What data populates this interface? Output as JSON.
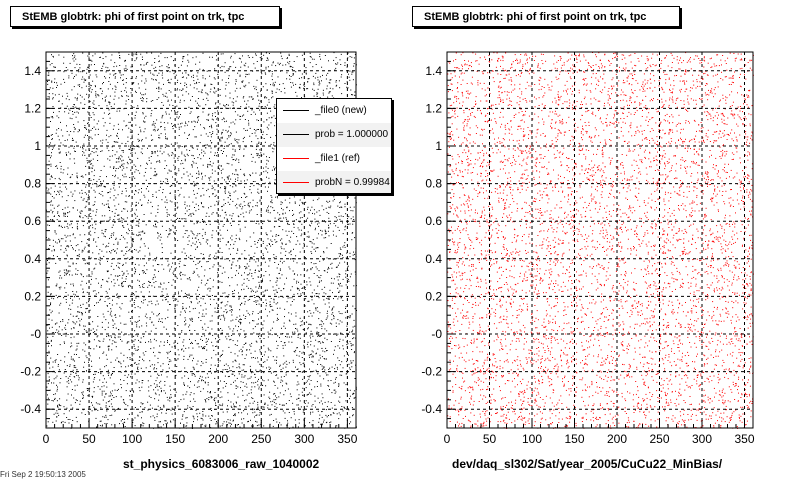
{
  "chart_data": [
    {
      "type": "scatter",
      "title": "StEMB globtrk: phi of first point on trk, tpc",
      "xlabel": "st_physics_6083006_raw_1040002",
      "ylabel": "",
      "xlim": [
        0,
        360
      ],
      "ylim": [
        -0.5,
        1.5
      ],
      "xticks": [
        0,
        50,
        100,
        150,
        200,
        250,
        300,
        350
      ],
      "yticks": [
        -0.4,
        -0.2,
        0,
        0.2,
        0.4,
        0.6,
        0.8,
        1,
        1.2,
        1.4
      ],
      "ytick_labels": [
        "-0.4",
        "-0.2",
        "-0",
        "0.2",
        "0.4",
        "0.6",
        "0.8",
        "1",
        "1.2",
        "1.4"
      ],
      "grid": true,
      "point_color": "#000000",
      "point_count_estimate": 6000,
      "distribution": "approximately uniform over x 0-360 and y -0.5-1.5",
      "legend": {
        "placement": "top-right",
        "entries": [
          {
            "label": "_file0 (new)",
            "color": "#000000"
          },
          {
            "label": "prob = 1.000000",
            "color": "#000000"
          },
          {
            "label": "_file1 (ref)",
            "color": "#ff0000"
          },
          {
            "label": "probN = 0.99984",
            "color": "#ff0000"
          }
        ]
      }
    },
    {
      "type": "scatter",
      "title": "StEMB globtrk: phi of first point on trk, tpc",
      "xlabel": "dev/daq_sl302/Sat/year_2005/CuCu22_MinBias/",
      "ylabel": "",
      "xlim": [
        0,
        360
      ],
      "ylim": [
        -0.5,
        1.5
      ],
      "xticks": [
        0,
        50,
        100,
        150,
        200,
        250,
        300,
        350
      ],
      "yticks": [
        -0.4,
        -0.2,
        0,
        0.2,
        0.4,
        0.6,
        0.8,
        1,
        1.2,
        1.4
      ],
      "ytick_labels": [
        "-0.4",
        "-0.2",
        "-0",
        "0.2",
        "0.4",
        "0.6",
        "0.8",
        "1",
        "1.2",
        "1.4"
      ],
      "grid": true,
      "point_color": "#ff0000",
      "point_count_estimate": 6000,
      "distribution": "approximately uniform over x 0-360 and y -0.5-1.5"
    }
  ],
  "footer": {
    "corner_text": "Fri Sep 2 19:50:13 2005"
  }
}
